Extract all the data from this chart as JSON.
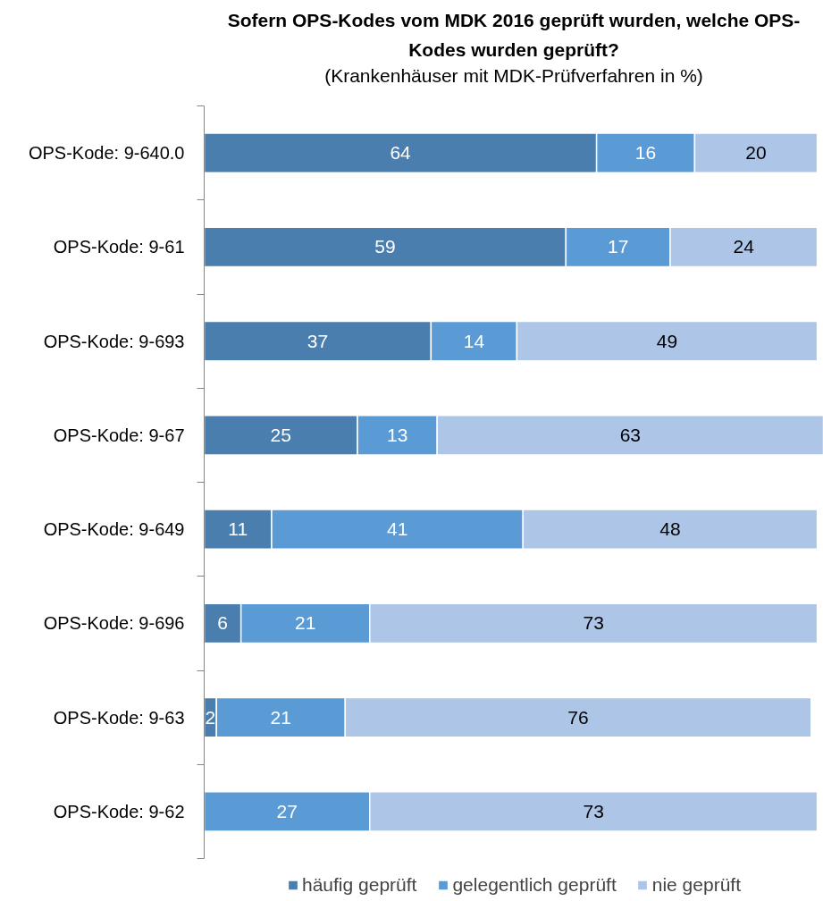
{
  "chart_data": {
    "type": "bar",
    "orientation": "horizontal",
    "stacked": true,
    "title": "Sofern OPS-Kodes vom MDK 2016 geprüft wurden, welche OPS-Kodes wurden geprüft?",
    "subtitle": "(Krankenhäuser mit MDK-Prüfverfahren in %)",
    "categories": [
      "OPS-Kode: 9-640.0",
      "OPS-Kode: 9-61",
      "OPS-Kode: 9-693",
      "OPS-Kode: 9-67",
      "OPS-Kode: 9-649",
      "OPS-Kode: 9-696",
      "OPS-Kode: 9-63",
      "OPS-Kode: 9-62"
    ],
    "series": [
      {
        "name": "häufig geprüft",
        "color": "#4a7eae",
        "values": [
          64,
          59,
          37,
          25,
          11,
          6,
          2,
          null
        ]
      },
      {
        "name": "gelegentlich geprüft",
        "color": "#5b9bd5",
        "values": [
          16,
          17,
          14,
          13,
          41,
          21,
          21,
          27
        ]
      },
      {
        "name": "nie geprüft",
        "color": "#adc5e6",
        "values": [
          20,
          24,
          49,
          63,
          48,
          73,
          76,
          73
        ]
      }
    ],
    "data_labels": true,
    "legend": "bottom",
    "tick_labels": "y"
  }
}
